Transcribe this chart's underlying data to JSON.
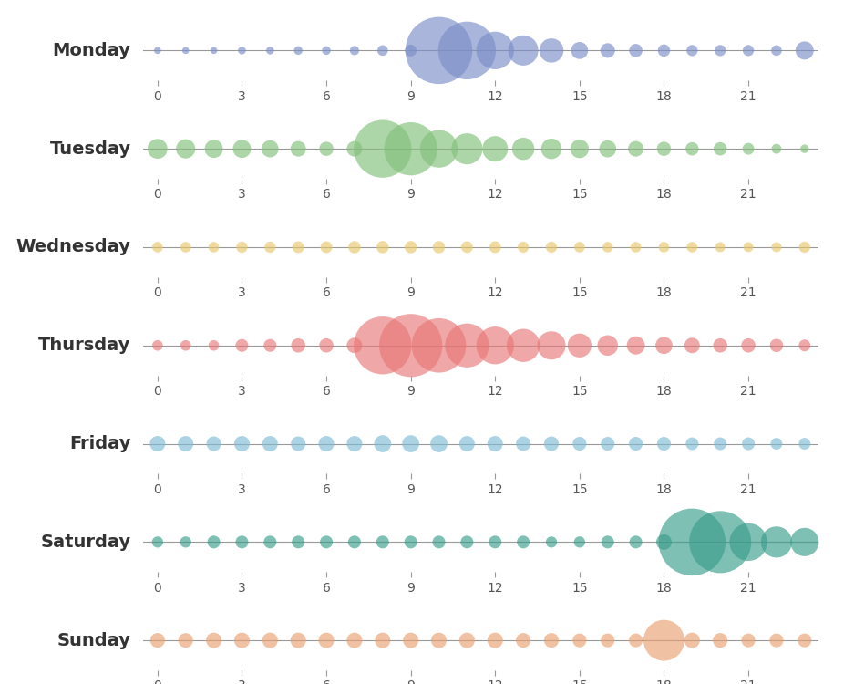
{
  "days": [
    "Monday",
    "Tuesday",
    "Wednesday",
    "Thursday",
    "Friday",
    "Saturday",
    "Sunday"
  ],
  "colors": [
    "#7b8ec8",
    "#82c07a",
    "#e8c76a",
    "#e87878",
    "#80bcd4",
    "#3a9e8c",
    "#e8a070"
  ],
  "hours": [
    0,
    1,
    2,
    3,
    4,
    5,
    6,
    7,
    8,
    9,
    10,
    11,
    12,
    13,
    14,
    15,
    16,
    17,
    18,
    19,
    20,
    21,
    22,
    23
  ],
  "voc_data": {
    "Monday": [
      3,
      3,
      3,
      4,
      4,
      5,
      5,
      6,
      8,
      10,
      350,
      260,
      110,
      70,
      45,
      22,
      16,
      13,
      11,
      9,
      9,
      9,
      8,
      25
    ],
    "Tuesday": [
      30,
      28,
      25,
      25,
      22,
      18,
      15,
      18,
      260,
      220,
      110,
      75,
      50,
      38,
      32,
      26,
      22,
      18,
      15,
      13,
      13,
      10,
      7,
      5
    ],
    "Wednesday": [
      8,
      8,
      8,
      9,
      9,
      10,
      10,
      11,
      11,
      11,
      11,
      10,
      10,
      9,
      9,
      8,
      8,
      8,
      8,
      8,
      7,
      7,
      7,
      9
    ],
    "Thursday": [
      8,
      8,
      8,
      12,
      12,
      15,
      15,
      18,
      260,
      310,
      230,
      150,
      110,
      85,
      62,
      44,
      32,
      25,
      22,
      18,
      15,
      15,
      13,
      10
    ],
    "Friday": [
      18,
      18,
      16,
      18,
      18,
      16,
      18,
      18,
      22,
      22,
      22,
      18,
      18,
      16,
      16,
      14,
      14,
      14,
      14,
      12,
      12,
      12,
      10,
      10
    ],
    "Saturday": [
      9,
      9,
      12,
      12,
      12,
      12,
      12,
      12,
      12,
      12,
      12,
      12,
      12,
      12,
      9,
      9,
      12,
      12,
      18,
      350,
      300,
      110,
      75,
      62
    ],
    "Sunday": [
      16,
      16,
      18,
      18,
      18,
      18,
      18,
      18,
      18,
      18,
      18,
      18,
      18,
      16,
      16,
      14,
      14,
      14,
      130,
      18,
      16,
      14,
      14,
      14
    ]
  },
  "figsize": [
    9.26,
    7.5
  ],
  "dpi": 100,
  "xlim": [
    -0.5,
    23.5
  ],
  "xticks": [
    0,
    3,
    6,
    9,
    12,
    15,
    18,
    21
  ],
  "min_size": 6,
  "max_size": 2800,
  "alpha": 0.65,
  "background_color": "#ffffff",
  "axis_line_color": "#999999",
  "tick_color": "#555555",
  "label_color": "#333333",
  "label_fontsize": 14,
  "tick_fontsize": 10
}
